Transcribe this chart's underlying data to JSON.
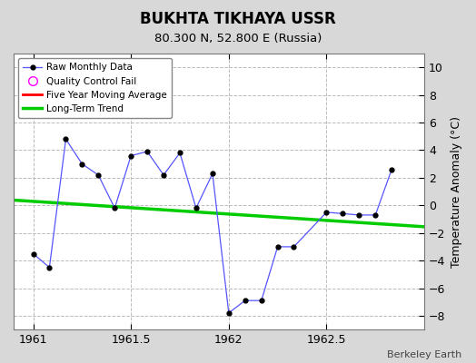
{
  "title": "BUKHTA TIKHAYA USSR",
  "subtitle": "80.300 N, 52.800 E (Russia)",
  "ylabel": "Temperature Anomaly (°C)",
  "credit": "Berkeley Earth",
  "xlim": [
    1960.9,
    1963.0
  ],
  "ylim": [
    -9,
    11
  ],
  "yticks": [
    -8,
    -6,
    -4,
    -2,
    0,
    2,
    4,
    6,
    8,
    10
  ],
  "xticks": [
    1961.0,
    1961.5,
    1962.0,
    1962.5
  ],
  "raw_x": [
    1961.0,
    1961.083,
    1961.167,
    1961.25,
    1961.333,
    1961.417,
    1961.5,
    1961.583,
    1961.667,
    1961.75,
    1961.833,
    1961.917,
    1962.0,
    1962.083,
    1962.167,
    1962.25,
    1962.333,
    1962.5,
    1962.583,
    1962.667,
    1962.75,
    1962.833
  ],
  "raw_y": [
    -3.5,
    -4.5,
    4.8,
    3.0,
    2.2,
    -0.2,
    3.6,
    3.9,
    2.2,
    3.8,
    -0.2,
    2.3,
    -7.8,
    -6.9,
    -6.9,
    -3.0,
    -3.0,
    -0.5,
    -0.6,
    -0.7,
    -0.7,
    2.6
  ],
  "trend_x": [
    1960.9,
    1963.0
  ],
  "trend_y": [
    0.38,
    -1.55
  ],
  "raw_color": "#5555ff",
  "raw_marker_color": "#000000",
  "trend_color": "#00cc00",
  "mavg_color": "#ff0000",
  "background_color": "#d8d8d8",
  "plot_background": "#ffffff",
  "grid_color": "#bbbbbb"
}
